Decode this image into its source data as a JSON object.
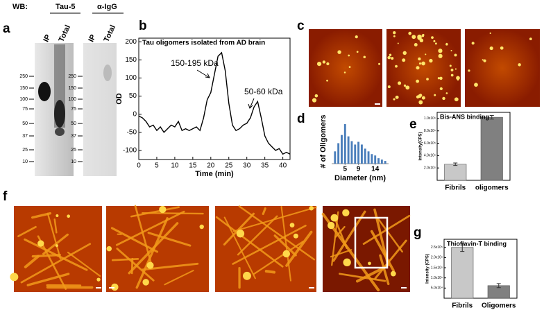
{
  "panel_letters": [
    "a",
    "b",
    "c",
    "d",
    "e",
    "f",
    "g"
  ],
  "blot": {
    "label": "WB:",
    "antibodies": [
      "Tau-5",
      "α-IgG"
    ],
    "lanes": [
      "IP",
      "Total"
    ],
    "markers": [
      "250",
      "150",
      "100",
      "75",
      "50",
      "37",
      "25",
      "10"
    ]
  },
  "chart_data": [
    {
      "type": "line",
      "title": "Tau oligomers isolated from AD brain",
      "x_label": "Time (min)",
      "y_label": "OD",
      "annotations": [
        "150-195 kDa",
        "50-60  kDa"
      ],
      "x": [
        0,
        1,
        2,
        3,
        4,
        5,
        6,
        7,
        8,
        9,
        10,
        11,
        12,
        13,
        14,
        15,
        16,
        17,
        18,
        19,
        20,
        21,
        22,
        23,
        24,
        25,
        26,
        27,
        28,
        29,
        30,
        31,
        32,
        33,
        34,
        35,
        36,
        37,
        38,
        39,
        40,
        41,
        42
      ],
      "values": [
        -5,
        -10,
        -20,
        -35,
        -30,
        -45,
        -35,
        -50,
        -40,
        -30,
        -35,
        -20,
        -45,
        -40,
        -45,
        -40,
        -35,
        -45,
        -10,
        40,
        60,
        110,
        160,
        170,
        120,
        30,
        -30,
        -45,
        -40,
        -30,
        -25,
        -10,
        20,
        35,
        -10,
        -60,
        -80,
        -90,
        -100,
        -95,
        -110,
        -105,
        -110
      ],
      "color": "#000000",
      "xlim": [
        0,
        42
      ],
      "xticks": [
        0,
        5,
        10,
        15,
        20,
        25,
        30,
        35,
        40
      ],
      "ylim": [
        -125,
        210
      ],
      "yticks": [
        -100,
        -50,
        0,
        50,
        100,
        150,
        200
      ]
    },
    {
      "type": "bar",
      "x_label": "Diameter (nm)",
      "y_label": "# of Oligomers",
      "x": [
        2,
        3,
        4,
        5,
        6,
        7,
        8,
        9,
        10,
        11,
        12,
        13,
        14,
        15,
        16,
        17
      ],
      "values": [
        18,
        30,
        42,
        58,
        40,
        33,
        28,
        32,
        28,
        22,
        18,
        14,
        12,
        8,
        6,
        4
      ],
      "color": "#4a7ebb",
      "xlim": [
        1,
        18
      ],
      "xticks": [
        5,
        9,
        14
      ],
      "ylim": [
        0,
        65
      ]
    },
    {
      "type": "bar",
      "title": "Bis-ANS binding",
      "y_label": "Intensity(CPS)",
      "categories": [
        "Fibrils",
        "oligomers"
      ],
      "values": [
        260000,
        1020000
      ],
      "errors": [
        20000,
        30000
      ],
      "colors": [
        "#c8c8c8",
        "#808080"
      ],
      "ylim": [
        0,
        1100000
      ],
      "yticks": [
        {
          "value": 200000,
          "label": "2.0x10⁵"
        },
        {
          "value": 400000,
          "label": "4.0x10⁵"
        },
        {
          "value": 600000,
          "label": "6.0x10⁵"
        },
        {
          "value": 800000,
          "label": "8.0x10⁵"
        },
        {
          "value": 1000000,
          "label": "1.0x10⁶"
        }
      ]
    },
    {
      "type": "bar",
      "title": "Thioflavin-T  binding",
      "y_label": "Intensity (CPS)",
      "categories": [
        "Fibrils",
        "Oligomers"
      ],
      "values": [
        250000,
        62000
      ],
      "errors": [
        20000,
        10000
      ],
      "colors": [
        "#c8c8c8",
        "#808080"
      ],
      "ylim": [
        0,
        290000
      ],
      "yticks": [
        {
          "value": 50000,
          "label": "5.0x10⁴"
        },
        {
          "value": 100000,
          "label": "1.0x10⁵"
        },
        {
          "value": 150000,
          "label": "1.5x10⁵"
        },
        {
          "value": 200000,
          "label": "2.0x10⁵"
        },
        {
          "value": 250000,
          "label": "2.5x10⁵"
        }
      ]
    }
  ]
}
